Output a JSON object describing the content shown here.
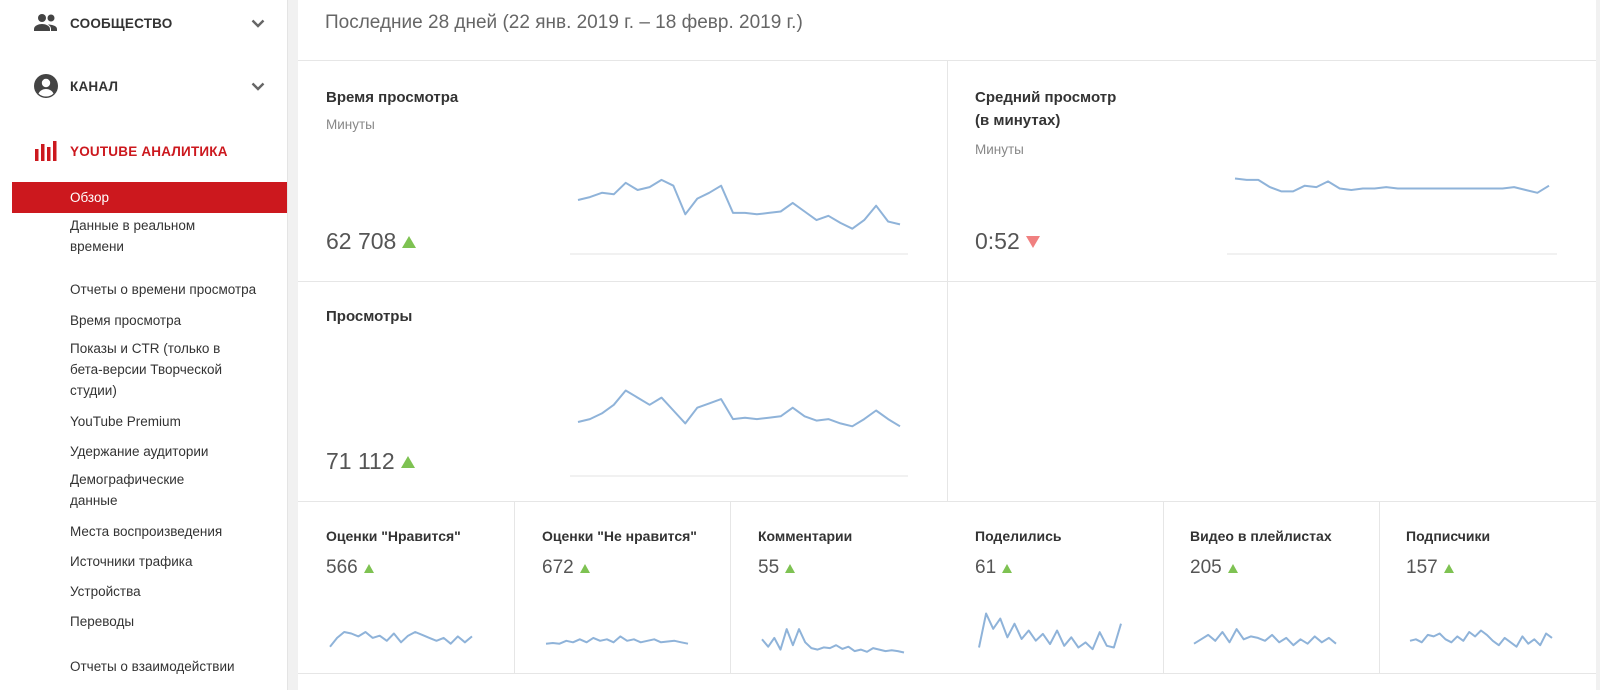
{
  "sidebar": {
    "community_label": "СООБЩЕСТВО",
    "channel_label": "КАНАЛ",
    "analytics_label": "YOUTUBE АНАЛИТИКА",
    "items": [
      {
        "label": "Обзор",
        "active": true
      },
      {
        "label": "Данные в реальном времени"
      },
      {
        "label": "Отчеты о времени просмотра"
      },
      {
        "label": "Время просмотра"
      },
      {
        "label": "Показы и CTR (только в бета-версии Творческой студии)"
      },
      {
        "label": "YouTube Premium"
      },
      {
        "label": "Удержание аудитории"
      },
      {
        "label": "Демографические данные"
      },
      {
        "label": "Места воспроизведения"
      },
      {
        "label": "Источники трафика"
      },
      {
        "label": "Устройства"
      },
      {
        "label": "Переводы"
      },
      {
        "label": "Отчеты о взаимодействии"
      }
    ],
    "accent_color": "#cc181e"
  },
  "main": {
    "period": "Последние 28 дней (22 янв. 2019 г. – 18 февр. 2019 г.)",
    "watch_time": {
      "title": "Время просмотра",
      "subtitle": "Минуты",
      "value": "62 708",
      "trend": "up"
    },
    "avg_view": {
      "title_line1": "Средний просмотр",
      "title_line2": "(в минутах)",
      "subtitle": "Минуты",
      "value": "0:52",
      "trend": "down"
    },
    "views": {
      "title": "Просмотры",
      "value": "71 112",
      "trend": "up"
    },
    "stats": [
      {
        "title": "Оценки \"Нравится\"",
        "value": "566",
        "trend": "up"
      },
      {
        "title": "Оценки \"Не нравится\"",
        "value": "672",
        "trend": "up"
      },
      {
        "title": "Комментарии",
        "value": "55",
        "trend": "up"
      },
      {
        "title": "Поделились",
        "value": "61",
        "trend": "up"
      },
      {
        "title": "Видео в плейлистах",
        "value": "205",
        "trend": "up"
      },
      {
        "title": "Подписчики",
        "value": "157",
        "trend": "up"
      }
    ],
    "trend_up_color": "#7ec252",
    "trend_down_color": "#f08080",
    "spark_color": "#8fb3d9"
  },
  "chart_data": [
    {
      "type": "line",
      "series": [
        {
          "values": [
            30,
            32,
            35,
            34,
            42,
            37,
            39,
            44,
            40,
            20,
            31,
            35,
            40,
            21,
            21,
            20,
            21,
            22,
            28,
            22,
            16,
            19,
            14,
            10,
            16,
            26,
            15,
            13
          ]
        }
      ]
    },
    {
      "type": "line",
      "series": [
        {
          "values": [
            45,
            44,
            44,
            39,
            36,
            36,
            40,
            39,
            43,
            38,
            37,
            38,
            38,
            39,
            38,
            38,
            38,
            38,
            38,
            38,
            38,
            38,
            38,
            38,
            39,
            37,
            35,
            40
          ]
        }
      ]
    },
    {
      "type": "line",
      "series": [
        {
          "values": [
            30,
            32,
            36,
            42,
            52,
            47,
            42,
            47,
            38,
            29,
            40,
            43,
            46,
            32,
            33,
            32,
            33,
            34,
            40,
            34,
            31,
            32,
            29,
            27,
            32,
            38,
            32,
            27
          ]
        }
      ]
    },
    {
      "type": "line",
      "series": [
        {
          "values": [
            10,
            22,
            30,
            28,
            24,
            30,
            22,
            25,
            18,
            28,
            16,
            25,
            30,
            26,
            22,
            18,
            22,
            14,
            24,
            16,
            24
          ]
        }
      ]
    },
    {
      "type": "line",
      "series": [
        {
          "values": [
            14,
            15,
            14,
            18,
            16,
            20,
            16,
            22,
            18,
            20,
            16,
            24,
            18,
            20,
            16,
            18,
            20,
            16,
            17,
            18,
            16,
            14
          ]
        }
      ]
    },
    {
      "type": "line",
      "series": [
        {
          "values": [
            20,
            10,
            22,
            6,
            34,
            12,
            34,
            16,
            8,
            6,
            9,
            8,
            12,
            7,
            10,
            4,
            6,
            3,
            8,
            6,
            4,
            5,
            4,
            2
          ]
        }
      ]
    },
    {
      "type": "line",
      "series": [
        {
          "values": [
            10,
            50,
            32,
            44,
            22,
            38,
            20,
            30,
            18,
            26,
            14,
            30,
            12,
            22,
            10,
            16,
            8,
            28,
            12,
            10,
            38
          ]
        }
      ]
    },
    {
      "type": "line",
      "series": [
        {
          "values": [
            14,
            20,
            26,
            18,
            30,
            16,
            34,
            20,
            24,
            22,
            18,
            26,
            16,
            22,
            12,
            20,
            14,
            24,
            16,
            22,
            14
          ]
        }
      ]
    },
    {
      "type": "line",
      "series": [
        {
          "values": [
            18,
            20,
            16,
            26,
            24,
            28,
            20,
            16,
            24,
            18,
            30,
            24,
            32,
            26,
            18,
            12,
            22,
            16,
            10,
            24,
            14,
            20,
            12,
            28,
            22
          ]
        }
      ]
    }
  ]
}
